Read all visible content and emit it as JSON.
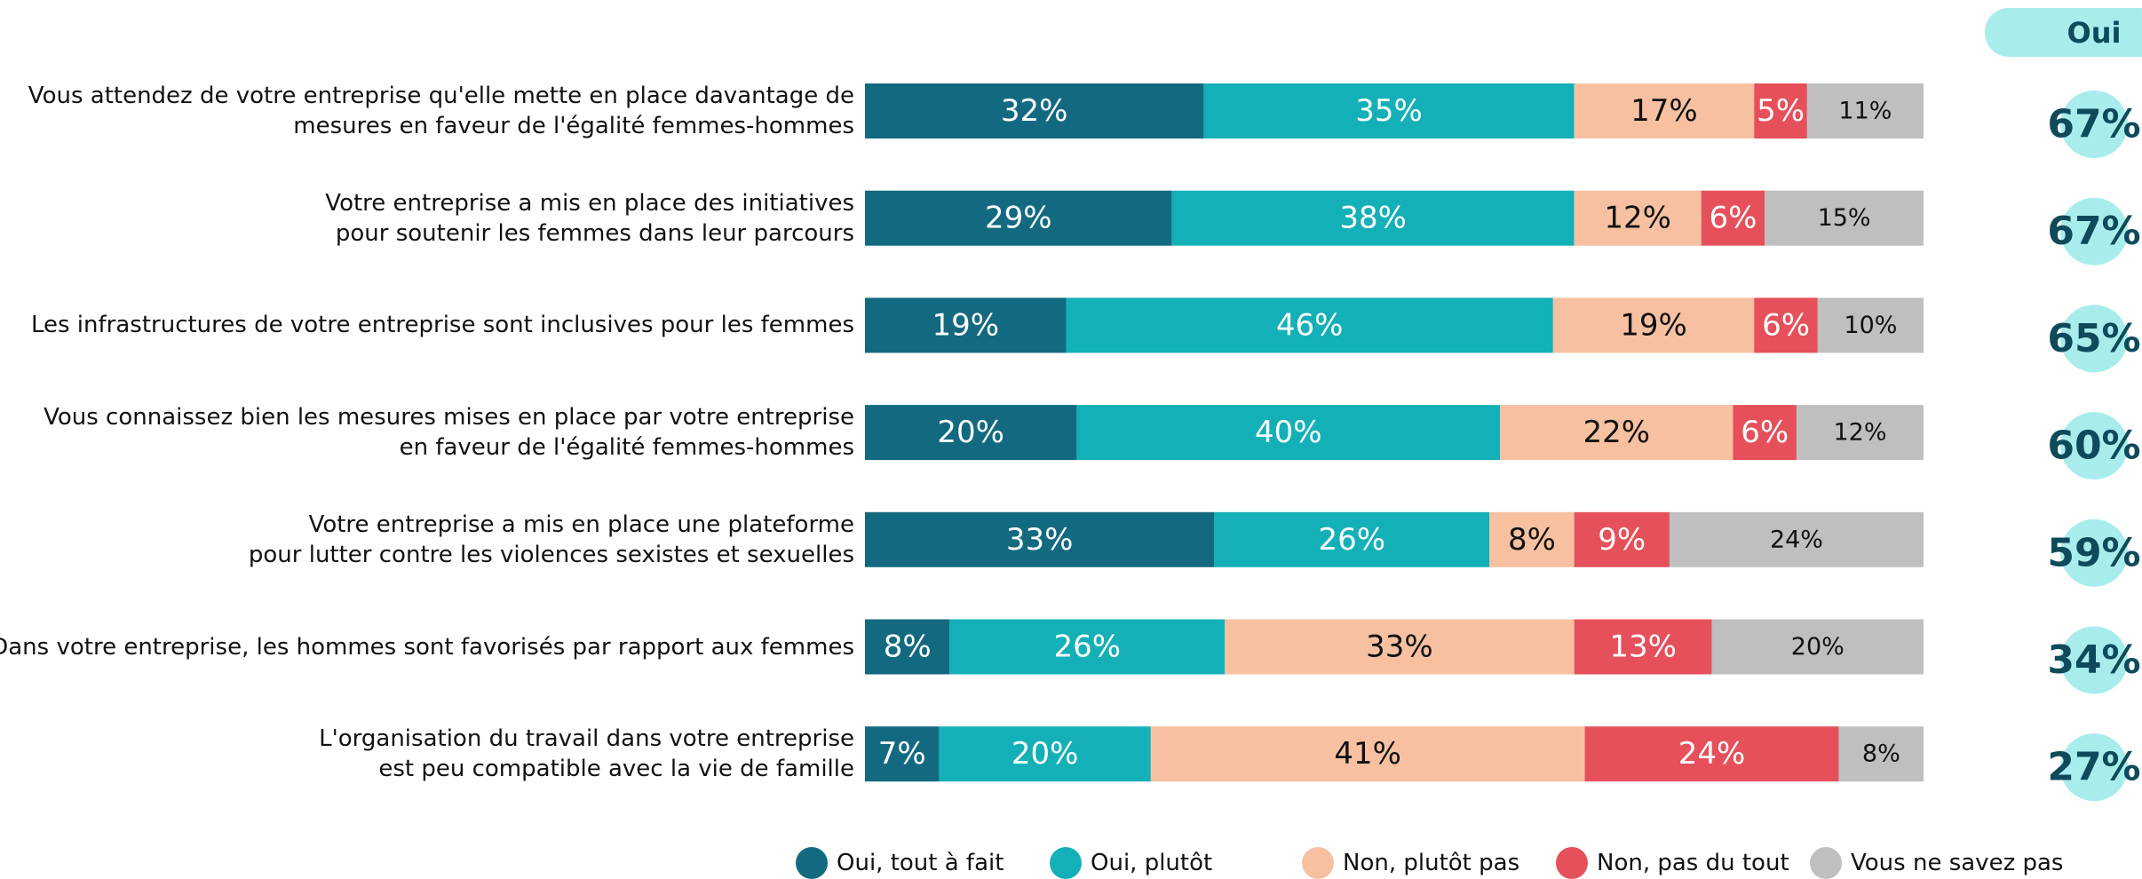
{
  "chart_data": {
    "type": "bar",
    "orientation": "horizontal",
    "stacked": true,
    "categories": [
      "Vous attendez de votre entreprise qu'elle mette en place davantage de\nmesures en faveur de l'égalité femmes-hommes",
      "Votre entreprise a mis en place des initiatives\npour soutenir les femmes dans leur parcours",
      "Les infrastructures de votre entreprise sont inclusives pour les femmes",
      "Vous connaissez bien les mesures mises en place par votre entreprise\nen faveur de l'égalité femmes-hommes",
      "Votre entreprise a mis en place une plateforme\npour lutter contre les violences sexistes et sexuelles",
      "Dans votre entreprise, les hommes sont favorisés par rapport aux femmes",
      "L'organisation du travail dans votre entreprise\nest peu compatible avec la vie de famille"
    ],
    "series": [
      {
        "name": "Oui, tout à fait",
        "color": "#136a80",
        "values": [
          32,
          29,
          19,
          20,
          33,
          8,
          7
        ],
        "value_labels": [
          "32%",
          "29%",
          "19%",
          "20%",
          "33%",
          "8%",
          "7%"
        ]
      },
      {
        "name": "Oui, plutôt",
        "color": "#14b0b8",
        "values": [
          35,
          38,
          46,
          40,
          26,
          26,
          20
        ],
        "value_labels": [
          "35%",
          "38%",
          "46%",
          "40%",
          "26%",
          "26%",
          "20%"
        ]
      },
      {
        "name": "Non, plutôt pas",
        "color": "#f7c1a1",
        "values": [
          17,
          12,
          19,
          22,
          8,
          33,
          41
        ],
        "value_labels": [
          "17%",
          "12%",
          "19%",
          "22%",
          "8%",
          "33%",
          "41%"
        ]
      },
      {
        "name": "Non, pas du tout",
        "color": "#e6505a",
        "values": [
          5,
          6,
          6,
          6,
          9,
          13,
          24
        ],
        "value_labels": [
          "5%",
          "6%",
          "6%",
          "6%",
          "9%",
          "13%",
          "24%"
        ]
      },
      {
        "name": "Vous ne savez pas",
        "color": "#bfbfbf",
        "values": [
          11,
          15,
          10,
          12,
          24,
          20,
          8
        ],
        "value_labels": [
          "11%",
          "15%",
          "10%",
          "12%",
          "24%",
          "20%",
          "8%"
        ]
      }
    ],
    "xlim": [
      0,
      100
    ],
    "totals": {
      "title": "Oui",
      "color": "#a8ecec",
      "text_color": "#0e4a5a",
      "values": [
        67,
        67,
        65,
        60,
        59,
        34,
        27
      ],
      "value_labels": [
        "67%",
        "67%",
        "65%",
        "60%",
        "59%",
        "34%",
        "27%"
      ]
    },
    "legend": "bottom"
  }
}
